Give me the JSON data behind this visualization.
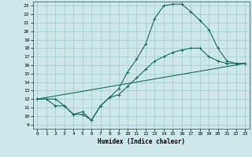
{
  "background_color": "#cce8e8",
  "grid_color": "#aacfcf",
  "line_color": "#1a6b5a",
  "xlabel": "Humidex (Indice chaleur)",
  "xlim": [
    -0.5,
    23.5
  ],
  "ylim": [
    8.5,
    23.5
  ],
  "xticks": [
    0,
    1,
    2,
    3,
    4,
    5,
    6,
    7,
    8,
    9,
    10,
    11,
    12,
    13,
    14,
    15,
    16,
    17,
    18,
    19,
    20,
    21,
    22,
    23
  ],
  "yticks": [
    9,
    10,
    11,
    12,
    13,
    14,
    15,
    16,
    17,
    18,
    19,
    20,
    21,
    22,
    23
  ],
  "line1_x": [
    0,
    1,
    2,
    3,
    4,
    5,
    6,
    7,
    8,
    9,
    10,
    11,
    12,
    13,
    14,
    15,
    16,
    17,
    18,
    19,
    20,
    21,
    22,
    23
  ],
  "line1_y": [
    12,
    12,
    12,
    11.2,
    10.2,
    10.2,
    9.5,
    11.2,
    12.2,
    13.2,
    15.2,
    16.7,
    18.5,
    21.5,
    23,
    23.2,
    23.2,
    22.3,
    21.3,
    20.2,
    18,
    16.5,
    16.2,
    16.2
  ],
  "line2_x": [
    0,
    1,
    2,
    3,
    4,
    5,
    6,
    7,
    8,
    9,
    10,
    11,
    12,
    13,
    14,
    15,
    16,
    17,
    18,
    19,
    20,
    21,
    22,
    23
  ],
  "line2_y": [
    12,
    12,
    11.2,
    11.2,
    10.2,
    10.5,
    9.5,
    11.2,
    12.2,
    12.5,
    13.5,
    14.5,
    15.5,
    16.5,
    17,
    17.5,
    17.8,
    18,
    18,
    17,
    16.5,
    16.2,
    16.2,
    16.2
  ],
  "line3_x": [
    0,
    23
  ],
  "line3_y": [
    12,
    16.2
  ],
  "marker": "+"
}
